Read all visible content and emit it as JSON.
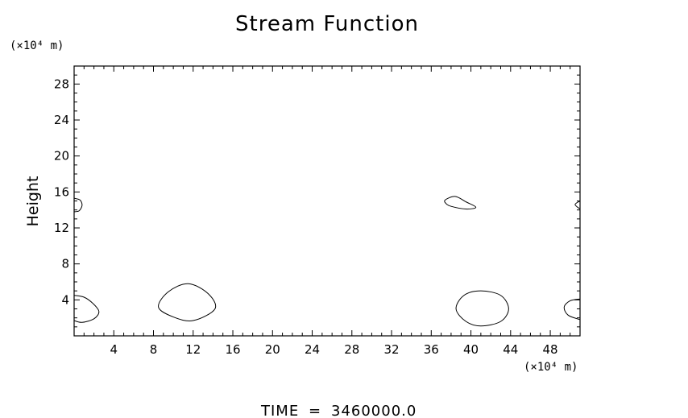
{
  "chart_data": {
    "type": "contour",
    "title": "Stream Function",
    "xlabel": "",
    "ylabel": "Height",
    "x_unit": "(×10⁴ m)",
    "y_unit": "(×10⁴ m)",
    "xlim": [
      0,
      51
    ],
    "ylim": [
      0,
      30
    ],
    "x_ticks": [
      4,
      8,
      12,
      16,
      20,
      24,
      28,
      32,
      36,
      40,
      44,
      48
    ],
    "y_ticks": [
      4,
      8,
      12,
      16,
      20,
      24,
      28
    ],
    "x_tick_labels": [
      "4",
      "8",
      "12",
      "16",
      "20",
      "24",
      "28",
      "32",
      "36",
      "40",
      "44",
      "48"
    ],
    "y_tick_labels": [
      "4",
      "8",
      "12",
      "16",
      "20",
      "24",
      "28"
    ],
    "grid": false,
    "contours": [
      {
        "points": [
          [
            0,
            4.5
          ],
          [
            1.0,
            4.3
          ],
          [
            1.9,
            3.6
          ],
          [
            2.5,
            2.7
          ],
          [
            2.0,
            1.9
          ],
          [
            0.8,
            1.5
          ],
          [
            0,
            1.7
          ]
        ]
      },
      {
        "points": [
          [
            8.5,
            3.2
          ],
          [
            9.5,
            4.9
          ],
          [
            11.5,
            5.8
          ],
          [
            13.5,
            4.7
          ],
          [
            14.2,
            3.0
          ],
          [
            12.0,
            1.7
          ],
          [
            10.0,
            2.1
          ]
        ]
      },
      {
        "points": [
          [
            0,
            15.3
          ],
          [
            0.6,
            15.1
          ],
          [
            0.8,
            14.5
          ],
          [
            0.5,
            13.9
          ],
          [
            0,
            13.8
          ]
        ]
      },
      {
        "points": [
          [
            37.4,
            15.1
          ],
          [
            38.4,
            15.5
          ],
          [
            39.5,
            14.9
          ],
          [
            40.5,
            14.3
          ],
          [
            39.5,
            14.1
          ],
          [
            38.0,
            14.4
          ],
          [
            37.5,
            14.7
          ]
        ]
      },
      {
        "points": [
          [
            38.5,
            3.0
          ],
          [
            39.3,
            4.5
          ],
          [
            41.0,
            5.0
          ],
          [
            43.0,
            4.5
          ],
          [
            43.8,
            3.0
          ],
          [
            43.0,
            1.6
          ],
          [
            41.0,
            1.1
          ],
          [
            39.5,
            1.6
          ]
        ]
      },
      {
        "points": [
          [
            51,
            4.1
          ],
          [
            50.0,
            3.9
          ],
          [
            49.4,
            3.2
          ],
          [
            49.8,
            2.3
          ],
          [
            51,
            1.8
          ]
        ]
      },
      {
        "points": [
          [
            51,
            15.0
          ],
          [
            50.5,
            14.6
          ],
          [
            51,
            14.1
          ]
        ]
      }
    ]
  },
  "footer": {
    "time_label": "TIME",
    "equals": "=",
    "time_value": "3460000.0"
  }
}
